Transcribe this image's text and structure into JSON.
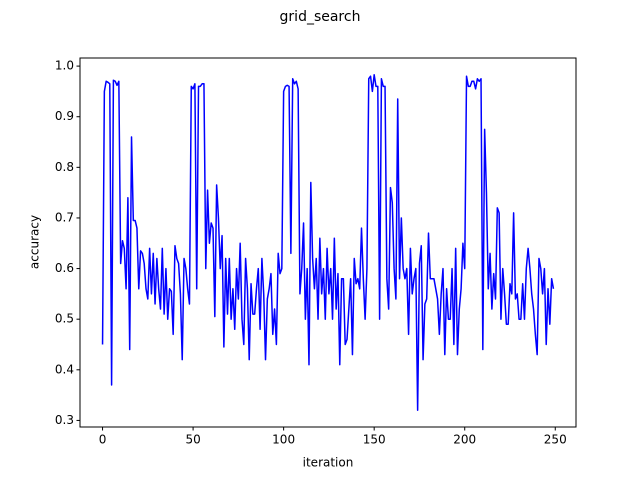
{
  "chart_data": {
    "type": "line",
    "title": "grid_search",
    "xlabel": "iteration",
    "ylabel": "accuracy",
    "color": "#0000ff",
    "x": [
      0,
      1,
      2,
      3,
      4,
      5,
      6,
      7,
      8,
      9,
      10,
      11,
      12,
      13,
      14,
      15,
      16,
      17,
      18,
      19,
      20,
      21,
      22,
      23,
      24,
      25,
      26,
      27,
      28,
      29,
      30,
      31,
      32,
      33,
      34,
      35,
      36,
      37,
      38,
      39,
      40,
      41,
      42,
      43,
      44,
      45,
      46,
      47,
      48,
      49,
      50,
      51,
      52,
      53,
      54,
      55,
      56,
      57,
      58,
      59,
      60,
      61,
      62,
      63,
      64,
      65,
      66,
      67,
      68,
      69,
      70,
      71,
      72,
      73,
      74,
      75,
      76,
      77,
      78,
      79,
      80,
      81,
      82,
      83,
      84,
      85,
      86,
      87,
      88,
      89,
      90,
      91,
      92,
      93,
      94,
      95,
      96,
      97,
      98,
      99,
      100,
      101,
      102,
      103,
      104,
      105,
      106,
      107,
      108,
      109,
      110,
      111,
      112,
      113,
      114,
      115,
      116,
      117,
      118,
      119,
      120,
      121,
      122,
      123,
      124,
      125,
      126,
      127,
      128,
      129,
      130,
      131,
      132,
      133,
      134,
      135,
      136,
      137,
      138,
      139,
      140,
      141,
      142,
      143,
      144,
      145,
      146,
      147,
      148,
      149,
      150,
      151,
      152,
      153,
      154,
      155,
      156,
      157,
      158,
      159,
      160,
      161,
      162,
      163,
      164,
      165,
      166,
      167,
      168,
      169,
      170,
      171,
      172,
      173,
      174,
      175,
      176,
      177,
      178,
      179,
      180,
      181,
      182,
      183,
      184,
      185,
      186,
      187,
      188,
      189,
      190,
      191,
      192,
      193,
      194,
      195,
      196,
      197,
      198,
      199,
      200,
      201,
      202,
      203,
      204,
      205,
      206,
      207,
      208,
      209,
      210,
      211,
      212,
      213,
      214,
      215,
      216,
      217,
      218,
      219,
      220,
      221,
      222,
      223,
      224,
      225,
      226,
      227,
      228,
      229,
      230,
      231,
      232,
      233,
      234,
      235,
      236,
      237,
      238,
      239,
      240,
      241,
      242,
      243,
      244,
      245,
      246,
      247,
      248,
      249
    ],
    "values": [
      0.45,
      0.95,
      0.97,
      0.968,
      0.965,
      0.37,
      0.972,
      0.97,
      0.962,
      0.97,
      0.61,
      0.655,
      0.64,
      0.56,
      0.74,
      0.44,
      0.86,
      0.695,
      0.695,
      0.68,
      0.56,
      0.635,
      0.63,
      0.61,
      0.56,
      0.54,
      0.64,
      0.55,
      0.63,
      0.53,
      0.62,
      0.56,
      0.52,
      0.64,
      0.51,
      0.6,
      0.5,
      0.56,
      0.555,
      0.47,
      0.645,
      0.62,
      0.61,
      0.55,
      0.42,
      0.62,
      0.6,
      0.56,
      0.53,
      0.96,
      0.955,
      0.965,
      0.56,
      0.96,
      0.96,
      0.965,
      0.965,
      0.6,
      0.755,
      0.65,
      0.69,
      0.68,
      0.505,
      0.765,
      0.7,
      0.6,
      0.665,
      0.445,
      0.62,
      0.51,
      0.62,
      0.5,
      0.56,
      0.48,
      0.6,
      0.54,
      0.65,
      0.5,
      0.45,
      0.62,
      0.56,
      0.42,
      0.57,
      0.51,
      0.51,
      0.56,
      0.6,
      0.48,
      0.62,
      0.55,
      0.42,
      0.54,
      0.56,
      0.59,
      0.47,
      0.52,
      0.45,
      0.63,
      0.59,
      0.6,
      0.95,
      0.96,
      0.962,
      0.96,
      0.63,
      0.975,
      0.965,
      0.97,
      0.955,
      0.55,
      0.6,
      0.69,
      0.5,
      0.6,
      0.41,
      0.77,
      0.62,
      0.56,
      0.62,
      0.5,
      0.66,
      0.55,
      0.6,
      0.5,
      0.64,
      0.55,
      0.6,
      0.5,
      0.66,
      0.52,
      0.59,
      0.41,
      0.58,
      0.58,
      0.45,
      0.46,
      0.52,
      0.58,
      0.43,
      0.62,
      0.57,
      0.58,
      0.56,
      0.68,
      0.58,
      0.5,
      0.6,
      0.975,
      0.98,
      0.95,
      0.983,
      0.96,
      0.96,
      0.5,
      0.975,
      0.96,
      0.96,
      0.58,
      0.52,
      0.76,
      0.73,
      0.6,
      0.54,
      0.935,
      0.58,
      0.7,
      0.6,
      0.58,
      0.6,
      0.47,
      0.64,
      0.55,
      0.58,
      0.6,
      0.32,
      0.61,
      0.645,
      0.42,
      0.53,
      0.54,
      0.67,
      0.58,
      0.58,
      0.58,
      0.56,
      0.54,
      0.47,
      0.55,
      0.6,
      0.43,
      0.56,
      0.5,
      0.5,
      0.6,
      0.45,
      0.64,
      0.43,
      0.52,
      0.56,
      0.65,
      0.6,
      0.98,
      0.96,
      0.96,
      0.97,
      0.97,
      0.955,
      0.975,
      0.97,
      0.975,
      0.44,
      0.875,
      0.75,
      0.56,
      0.63,
      0.52,
      0.59,
      0.54,
      0.72,
      0.71,
      0.5,
      0.6,
      0.55,
      0.49,
      0.49,
      0.57,
      0.55,
      0.71,
      0.54,
      0.55,
      0.5,
      0.5,
      0.57,
      0.5,
      0.6,
      0.64,
      0.6,
      0.55,
      0.52,
      0.47,
      0.43,
      0.62,
      0.6,
      0.55,
      0.6,
      0.45,
      0.56,
      0.49,
      0.58,
      0.56
    ],
    "xlim": [
      -12.45,
      261.45
    ],
    "xticks": [
      0,
      50,
      100,
      150,
      200,
      250
    ],
    "ylim": [
      0.287,
      1.016
    ],
    "yticks": [
      0.3,
      0.4,
      0.5,
      0.6,
      0.7,
      0.8,
      0.9,
      {
        "value": 1,
        "label": "1.0"
      }
    ]
  }
}
